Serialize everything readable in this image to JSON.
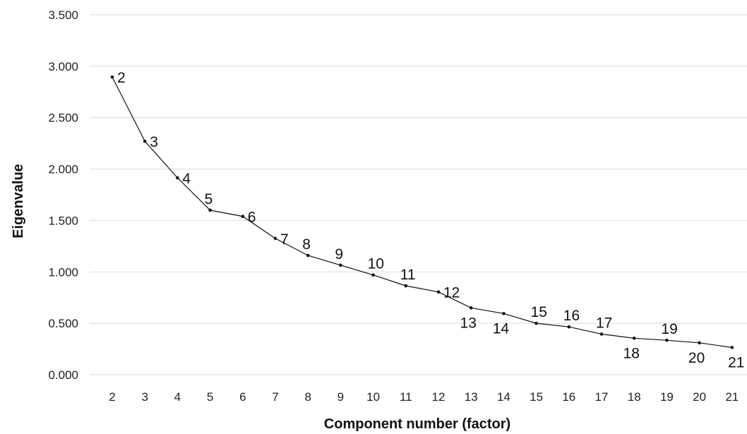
{
  "chart_data": {
    "type": "line",
    "title": "",
    "xlabel": "Component number (factor)",
    "ylabel": "Eigenvalue",
    "ylim": [
      0,
      3.5
    ],
    "y_ticks": [
      "0.000",
      "0.500",
      "1.000",
      "1.500",
      "2.000",
      "2.500",
      "3.000",
      "3.500"
    ],
    "grid": "horizontal",
    "x": [
      2,
      3,
      4,
      5,
      6,
      7,
      8,
      9,
      10,
      11,
      12,
      13,
      14,
      15,
      16,
      17,
      18,
      19,
      20,
      21
    ],
    "values": [
      2.895,
      2.27,
      1.915,
      1.6,
      1.54,
      1.325,
      1.16,
      1.065,
      0.97,
      0.865,
      0.805,
      0.65,
      0.595,
      0.5,
      0.465,
      0.395,
      0.355,
      0.335,
      0.31,
      0.265
    ],
    "point_labels": [
      "2",
      "3",
      "4",
      "5",
      "6",
      "7",
      "8",
      "9",
      "10",
      "11",
      "12",
      "13",
      "14",
      "15",
      "16",
      "17",
      "18",
      "19",
      "20",
      "21"
    ],
    "label_side": [
      "right",
      "right",
      "right",
      "above",
      "right",
      "right",
      "above",
      "above",
      "above",
      "above",
      "right",
      "below",
      "below",
      "above",
      "above",
      "above",
      "below",
      "above",
      "below",
      "below"
    ]
  }
}
